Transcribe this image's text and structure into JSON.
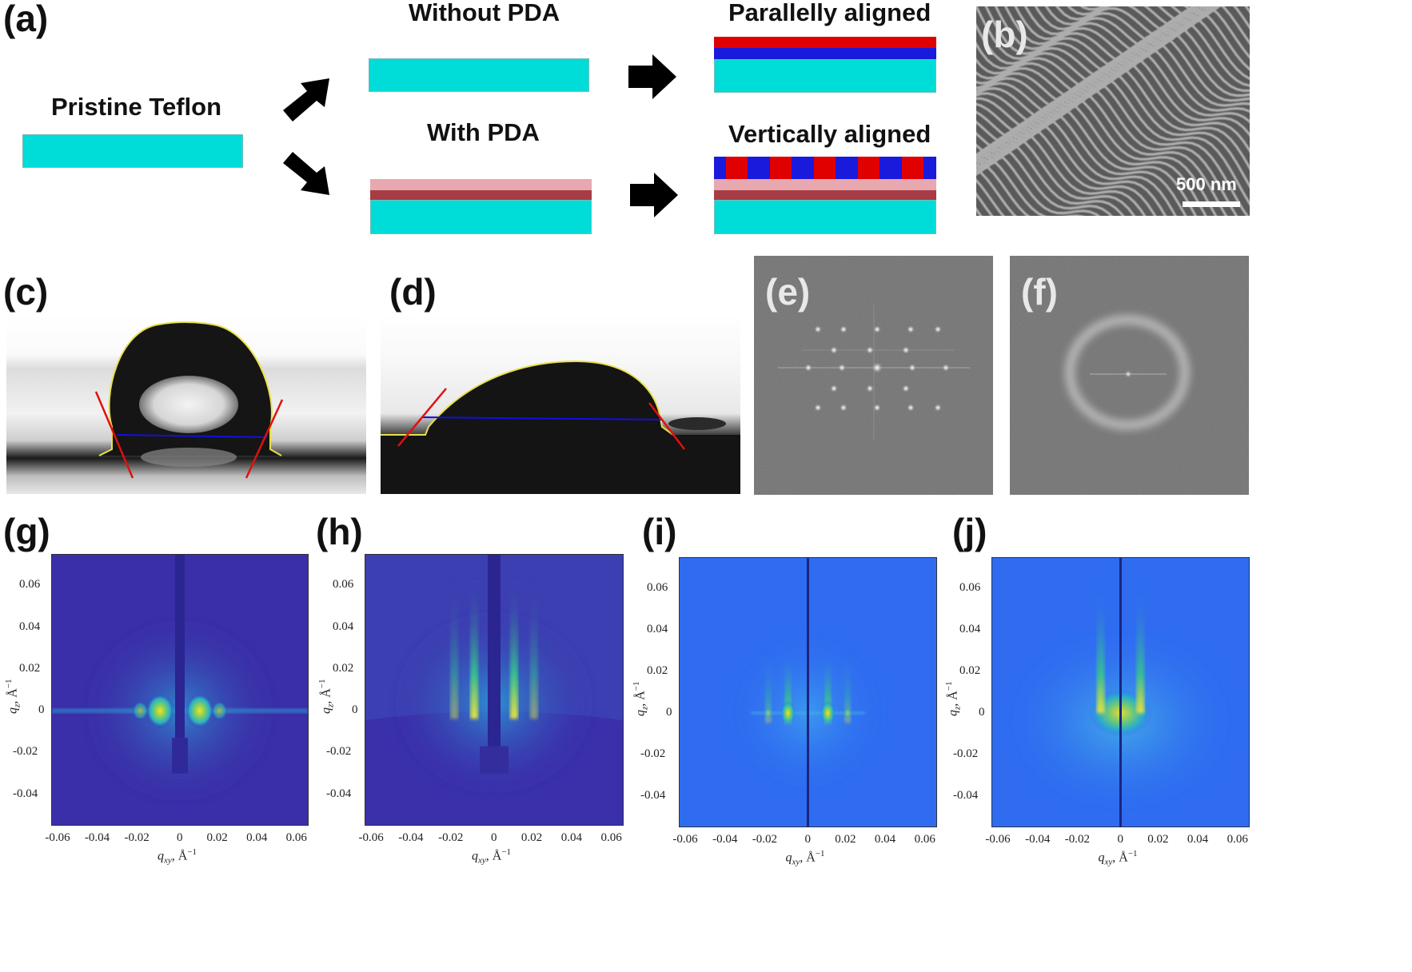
{
  "panels": {
    "a": {
      "label": "(a)",
      "pristine": "Pristine Teflon",
      "without": "Without PDA",
      "with": "With PDA",
      "parallel": "Parallelly aligned",
      "vertical": "Vertically aligned",
      "colors": {
        "teflon": "#00dcd8",
        "pda_top": "#e8a8b0",
        "pda_bottom": "#a83c44",
        "block_red": "#e00000",
        "block_blue": "#1a1add"
      }
    },
    "b": {
      "label": "(b)",
      "scale": "500 nm"
    },
    "c": {
      "label": "(c)"
    },
    "d": {
      "label": "(d)"
    },
    "e": {
      "label": "(e)"
    },
    "f": {
      "label": "(f)"
    },
    "g": {
      "label": "(g)"
    },
    "h": {
      "label": "(h)"
    },
    "i": {
      "label": "(i)"
    },
    "j": {
      "label": "(j)"
    }
  },
  "chart_data": [
    {
      "panel": "g",
      "type": "heatmap",
      "xlabel": "q_xy, Å^-1",
      "ylabel": "q_z, Å^-1",
      "xlim": [
        -0.065,
        0.065
      ],
      "ylim": [
        -0.055,
        0.075
      ],
      "xticks": [
        "-0.06",
        "-0.04",
        "-0.02",
        "0",
        "0.02",
        "0.04",
        "0.06"
      ],
      "yticks": [
        "0.06",
        "0.04",
        "0.02",
        "0",
        "-0.02",
        "-0.04"
      ]
    },
    {
      "panel": "h",
      "type": "heatmap",
      "xlabel": "q_xy, Å^-1",
      "ylabel": "q_z, Å^-1",
      "xlim": [
        -0.065,
        0.065
      ],
      "ylim": [
        -0.055,
        0.075
      ],
      "xticks": [
        "-0.06",
        "-0.04",
        "-0.02",
        "0",
        "0.02",
        "0.04",
        "0.06"
      ],
      "yticks": [
        "0.06",
        "0.04",
        "0.02",
        "0",
        "-0.02",
        "-0.04"
      ]
    },
    {
      "panel": "i",
      "type": "heatmap",
      "xlabel": "q_xy, Å^-1",
      "ylabel": "q_z, Å^-1",
      "xlim": [
        -0.065,
        0.065
      ],
      "ylim": [
        -0.055,
        0.075
      ],
      "xticks": [
        "-0.06",
        "-0.04",
        "-0.02",
        "0",
        "0.02",
        "0.04",
        "0.06"
      ],
      "yticks": [
        "0.06",
        "0.04",
        "0.02",
        "0",
        "-0.02",
        "-0.04"
      ]
    },
    {
      "panel": "j",
      "type": "heatmap",
      "xlabel": "q_xy, Å^-1",
      "ylabel": "q_z, Å^-1",
      "xlim": [
        -0.065,
        0.065
      ],
      "ylim": [
        -0.055,
        0.075
      ],
      "xticks": [
        "-0.06",
        "-0.04",
        "-0.02",
        "0",
        "0.02",
        "0.04",
        "0.06"
      ],
      "yticks": [
        "0.06",
        "0.04",
        "0.02",
        "0",
        "-0.02",
        "-0.04"
      ]
    }
  ],
  "axis_text": {
    "x_main": "q",
    "x_sub": "xy",
    "x_unit": ", Å",
    "y_main": "q",
    "y_sub": "z",
    "y_unit": ", Å",
    "power": "−1"
  }
}
